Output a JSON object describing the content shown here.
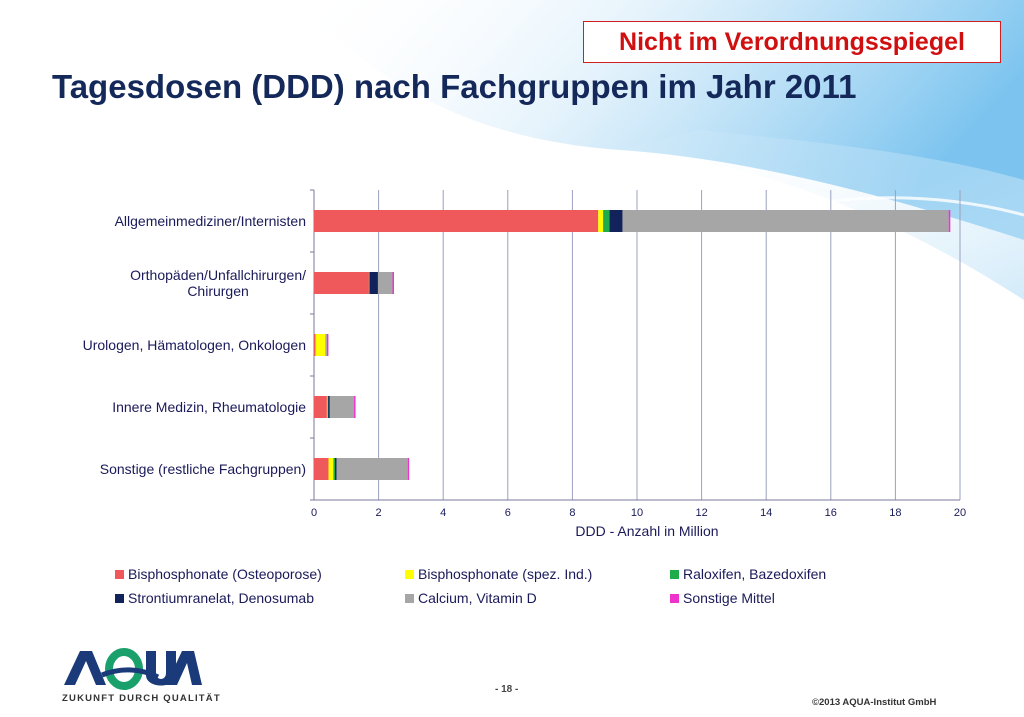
{
  "slide": {
    "badge": "Nicht im Verordnungsspiegel",
    "title": "Tagesdosen (DDD) nach Fachgruppen im Jahr 2011",
    "page_number": "- 18 -",
    "copyright": "©2013 AQUA-Institut GmbH",
    "logo_tagline": "ZUKUNFT DURCH QUALITÄT",
    "logo_text": "AQUA"
  },
  "chart_data": {
    "type": "bar",
    "orientation": "horizontal",
    "stacked": true,
    "title": "",
    "xlabel": "DDD - Anzahl in Million",
    "ylabel": "",
    "xlim": [
      0,
      20
    ],
    "xticks": [
      0,
      2,
      4,
      6,
      8,
      10,
      12,
      14,
      16,
      18,
      20
    ],
    "grid": true,
    "legend_position": "bottom",
    "categories": [
      "Allgemeinmediziner/Internisten",
      "Orthopäden/Unfallchirurgen/ Chirurgen",
      "Urologen, Hämatologen, Onkologen",
      "Innere Medizin, Rheumatologie",
      "Sonstige (restliche Fachgruppen)"
    ],
    "series": [
      {
        "name": "Bisphosphonate (Osteoporose)",
        "color": "#f0595c",
        "values": [
          8.8,
          1.7,
          0.05,
          0.4,
          0.45
        ]
      },
      {
        "name": "Bisphosphonate (spez. Ind.)",
        "color": "#ffff00",
        "values": [
          0.15,
          0.0,
          0.3,
          0.02,
          0.15
        ]
      },
      {
        "name": "Raloxifen, Bazedoxifen",
        "color": "#1fad4b",
        "values": [
          0.2,
          0.03,
          0.0,
          0.02,
          0.05
        ]
      },
      {
        "name": "Strontiumranelat, Denosumab",
        "color": "#12235c",
        "values": [
          0.4,
          0.25,
          0.0,
          0.05,
          0.05
        ]
      },
      {
        "name": "Calcium, Vitamin D",
        "color": "#a6a6a6",
        "values": [
          10.1,
          0.45,
          0.05,
          0.75,
          2.2
        ]
      },
      {
        "name": "Sonstige Mittel",
        "color": "#ee33cc",
        "values": [
          0.05,
          0.03,
          0.03,
          0.03,
          0.03
        ]
      }
    ]
  }
}
